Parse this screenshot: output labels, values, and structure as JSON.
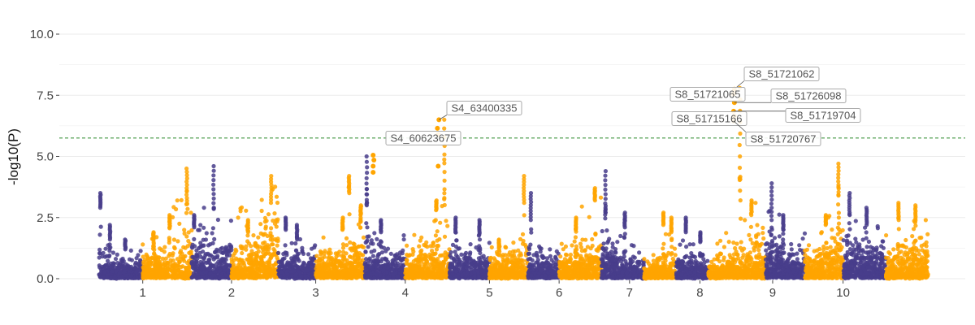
{
  "chart_data": {
    "type": "scatter",
    "subtype": "manhattan",
    "title": "",
    "xlabel": "",
    "ylabel": "-log10(P)",
    "ylim": [
      0,
      11
    ],
    "yticks": [
      0.0,
      2.5,
      5.0,
      7.5,
      10.0
    ],
    "ytick_labels": [
      "0.0",
      "2.5",
      "5.0",
      "7.5",
      "10.0"
    ],
    "grid": true,
    "legend": "none",
    "significance_threshold": 5.75,
    "colors": {
      "odd": "#483d8b",
      "even": "#ffa500",
      "threshold": "#2e8b2e",
      "grid": "#ebebeb"
    },
    "chromosomes": [
      {
        "label": "1",
        "start": 0.0,
        "end": 0.57,
        "profile": [
          [
            0,
            0.55
          ],
          [
            0.45,
            0.4
          ],
          [
            1,
            0.45
          ]
        ],
        "peaks": [
          [
            0.03,
            3.5,
            2.9
          ],
          [
            0.25,
            2.2,
            1.6
          ],
          [
            0.6,
            1.6,
            1.2
          ]
        ]
      },
      {
        "label": "1",
        "start": 0.57,
        "end": 1.21,
        "profile": [
          [
            0,
            0.55
          ],
          [
            0.5,
            0.7
          ],
          [
            1,
            1.1
          ]
        ],
        "peaks": [
          [
            0.22,
            1.9,
            1.6
          ],
          [
            0.55,
            2.6,
            2.1
          ],
          [
            0.9,
            4.5,
            3.3
          ]
        ]
      },
      {
        "label": "2",
        "start": 1.21,
        "end": 1.73,
        "profile": [
          [
            0,
            0.9
          ],
          [
            0.5,
            0.8
          ],
          [
            1,
            0.9
          ]
        ],
        "peaks": [
          [
            0.06,
            2.6,
            2.1
          ],
          [
            0.55,
            4.6,
            2.9
          ]
        ]
      },
      {
        "label": "2",
        "start": 1.73,
        "end": 2.34,
        "profile": [
          [
            0,
            0.7
          ],
          [
            0.5,
            0.9
          ],
          [
            1,
            1.5
          ]
        ],
        "peaks": [
          [
            0.35,
            2.4,
            1.9
          ],
          [
            0.85,
            4.2,
            3.1
          ]
        ]
      },
      {
        "label": "3",
        "start": 2.34,
        "end": 2.83,
        "profile": [
          [
            0,
            0.7
          ],
          [
            0.5,
            0.55
          ],
          [
            1,
            0.5
          ]
        ],
        "peaks": [
          [
            0.2,
            2.5,
            2.0
          ],
          [
            0.5,
            2.2,
            1.6
          ]
        ]
      },
      {
        "label": "3",
        "start": 2.83,
        "end": 3.47,
        "profile": [
          [
            0,
            0.5
          ],
          [
            0.5,
            0.65
          ],
          [
            1,
            0.95
          ]
        ],
        "peaks": [
          [
            0.55,
            2.5,
            2.0
          ],
          [
            0.68,
            4.2,
            3.5
          ],
          [
            0.92,
            3.0,
            2.6
          ]
        ]
      },
      {
        "label": "4",
        "start": 3.47,
        "end": 4.0,
        "profile": [
          [
            0,
            0.9
          ],
          [
            0.5,
            0.7
          ],
          [
            1,
            0.5
          ]
        ],
        "peaks": [
          [
            0.05,
            5.0,
            3.0
          ],
          [
            0.4,
            2.4,
            1.9
          ]
        ]
      },
      {
        "label": "4",
        "start": 4.0,
        "end": 4.58,
        "profile": [
          [
            0,
            0.5
          ],
          [
            0.5,
            0.8
          ],
          [
            1,
            1.1
          ]
        ],
        "peaks": [
          [
            0.7,
            3.2,
            2.8
          ],
          [
            0.88,
            6.5,
            3.3
          ]
        ]
      },
      {
        "label": "5",
        "start": 4.58,
        "end": 5.1,
        "profile": [
          [
            0,
            0.7
          ],
          [
            0.5,
            0.6
          ],
          [
            1,
            0.5
          ]
        ],
        "peaks": [
          [
            0.15,
            2.5,
            1.9
          ],
          [
            0.75,
            2.4,
            1.8
          ]
        ]
      },
      {
        "label": "5",
        "start": 5.1,
        "end": 5.6,
        "profile": [
          [
            0,
            0.5
          ],
          [
            0.5,
            0.6
          ],
          [
            1,
            0.8
          ]
        ],
        "peaks": [
          [
            0.25,
            1.6,
            1.3
          ],
          [
            0.9,
            4.2,
            3.1
          ]
        ]
      },
      {
        "label": "6",
        "start": 5.6,
        "end": 6.01,
        "profile": [
          [
            0,
            0.7
          ],
          [
            0.5,
            0.5
          ],
          [
            1,
            0.5
          ]
        ],
        "peaks": [
          [
            0.1,
            3.5,
            2.4
          ]
        ]
      },
      {
        "label": "6",
        "start": 6.01,
        "end": 6.56,
        "profile": [
          [
            0,
            0.5
          ],
          [
            0.5,
            0.8
          ],
          [
            1,
            1.1
          ]
        ],
        "peaks": [
          [
            0.4,
            2.5,
            2.0
          ],
          [
            0.85,
            3.7,
            3.2
          ]
        ]
      },
      {
        "label": "7",
        "start": 6.56,
        "end": 7.12,
        "profile": [
          [
            0,
            0.9
          ],
          [
            0.5,
            0.6
          ],
          [
            1,
            0.4
          ]
        ],
        "peaks": [
          [
            0.1,
            4.4,
            2.7
          ],
          [
            0.55,
            2.7,
            2.1
          ]
        ]
      },
      {
        "label": "7",
        "start": 7.12,
        "end": 7.54,
        "profile": [
          [
            0,
            0.3
          ],
          [
            0.5,
            0.5
          ],
          [
            1,
            0.6
          ]
        ],
        "peaks": [
          [
            0.6,
            2.7,
            2.2
          ],
          [
            0.85,
            2.5,
            1.9
          ]
        ]
      },
      {
        "label": "8",
        "start": 7.54,
        "end": 7.96,
        "profile": [
          [
            0,
            0.5
          ],
          [
            0.5,
            0.5
          ],
          [
            1,
            0.4
          ]
        ],
        "peaks": [
          [
            0.3,
            2.5,
            1.9
          ],
          [
            0.75,
            1.9,
            1.5
          ]
        ]
      },
      {
        "label": "8",
        "start": 7.96,
        "end": 8.71,
        "profile": [
          [
            0,
            0.4
          ],
          [
            0.5,
            0.7
          ],
          [
            1,
            0.9
          ]
        ],
        "peaks": [
          [
            0.55,
            7.8,
            3.6
          ],
          [
            0.75,
            3.2,
            2.6
          ]
        ]
      },
      {
        "label": "9",
        "start": 8.71,
        "end": 9.22,
        "profile": [
          [
            0,
            0.9
          ],
          [
            0.5,
            0.7
          ],
          [
            1,
            0.6
          ]
        ],
        "peaks": [
          [
            0.15,
            3.9,
            2.4
          ],
          [
            0.45,
            2.6,
            2.0
          ]
        ]
      },
      {
        "label": "9",
        "start": 9.22,
        "end": 9.72,
        "profile": [
          [
            0,
            0.5
          ],
          [
            0.5,
            0.8
          ],
          [
            1,
            1.3
          ]
        ],
        "peaks": [
          [
            0.55,
            2.6,
            2.2
          ],
          [
            0.88,
            4.7,
            3.4
          ]
        ]
      },
      {
        "label": "10",
        "start": 9.72,
        "end": 10.28,
        "profile": [
          [
            0,
            0.9
          ],
          [
            0.5,
            0.8
          ],
          [
            1,
            0.7
          ]
        ],
        "peaks": [
          [
            0.15,
            3.5,
            2.6
          ],
          [
            0.55,
            2.9,
            2.2
          ]
        ]
      },
      {
        "label": "10",
        "start": 10.28,
        "end": 10.83,
        "profile": [
          [
            0,
            0.6
          ],
          [
            0.5,
            0.7
          ],
          [
            1,
            0.8
          ]
        ],
        "peaks": [
          [
            0.3,
            3.1,
            2.4
          ],
          [
            0.7,
            3.0,
            2.3
          ]
        ]
      }
    ],
    "x_ticks": [
      {
        "label": "1",
        "x": 0.57
      },
      {
        "label": "2",
        "x": 1.73
      },
      {
        "label": "3",
        "x": 2.83
      },
      {
        "label": "4",
        "x": 4.0
      },
      {
        "label": "5",
        "x": 5.1
      },
      {
        "label": "6",
        "x": 6.01
      },
      {
        "label": "7",
        "x": 6.93
      },
      {
        "label": "8",
        "x": 7.85
      },
      {
        "label": "9",
        "x": 8.8
      },
      {
        "label": "10",
        "x": 9.72
      }
    ],
    "highlighted_points": [
      {
        "x": 3.58,
        "y": 4.35,
        "color": "#ffa500"
      },
      {
        "x": 3.58,
        "y": 4.6,
        "color": "#ffa500"
      },
      {
        "x": 3.59,
        "y": 4.85,
        "color": "#ffa500"
      },
      {
        "x": 3.58,
        "y": 5.05,
        "color": "#ffa500"
      },
      {
        "x": 4.43,
        "y": 4.6,
        "color": "#ffa500"
      },
      {
        "x": 4.43,
        "y": 5.9,
        "color": "#ffa500"
      },
      {
        "x": 4.42,
        "y": 6.15,
        "color": "#ffa500"
      },
      {
        "x": 4.44,
        "y": 6.5,
        "color": "#ffa500"
      },
      {
        "x": 8.29,
        "y": 6.45,
        "color": "#ffa500"
      },
      {
        "x": 8.3,
        "y": 6.65,
        "color": "#ffa500"
      },
      {
        "x": 8.29,
        "y": 6.85,
        "color": "#ffa500"
      },
      {
        "x": 8.3,
        "y": 7.2,
        "color": "#ffa500"
      },
      {
        "x": 8.29,
        "y": 7.55,
        "color": "#ffa500"
      },
      {
        "x": 8.3,
        "y": 7.75,
        "color": "#ffa500"
      }
    ],
    "annotations": [
      {
        "text": "S4_63400335",
        "x": 4.44,
        "y": 6.5
      },
      {
        "text": "S4_60623675",
        "x": 4.43,
        "y": 5.9
      },
      {
        "text": "S8_51721062",
        "x": 8.3,
        "y": 7.75
      },
      {
        "text": "S8_51721065",
        "x": 8.29,
        "y": 7.55
      },
      {
        "text": "S8_51726098",
        "x": 8.3,
        "y": 7.2
      },
      {
        "text": "S8_51719704",
        "x": 8.29,
        "y": 6.85
      },
      {
        "text": "S8_51715166",
        "x": 8.3,
        "y": 6.65
      },
      {
        "text": "S8_51720767",
        "x": 8.29,
        "y": 6.45
      }
    ]
  }
}
